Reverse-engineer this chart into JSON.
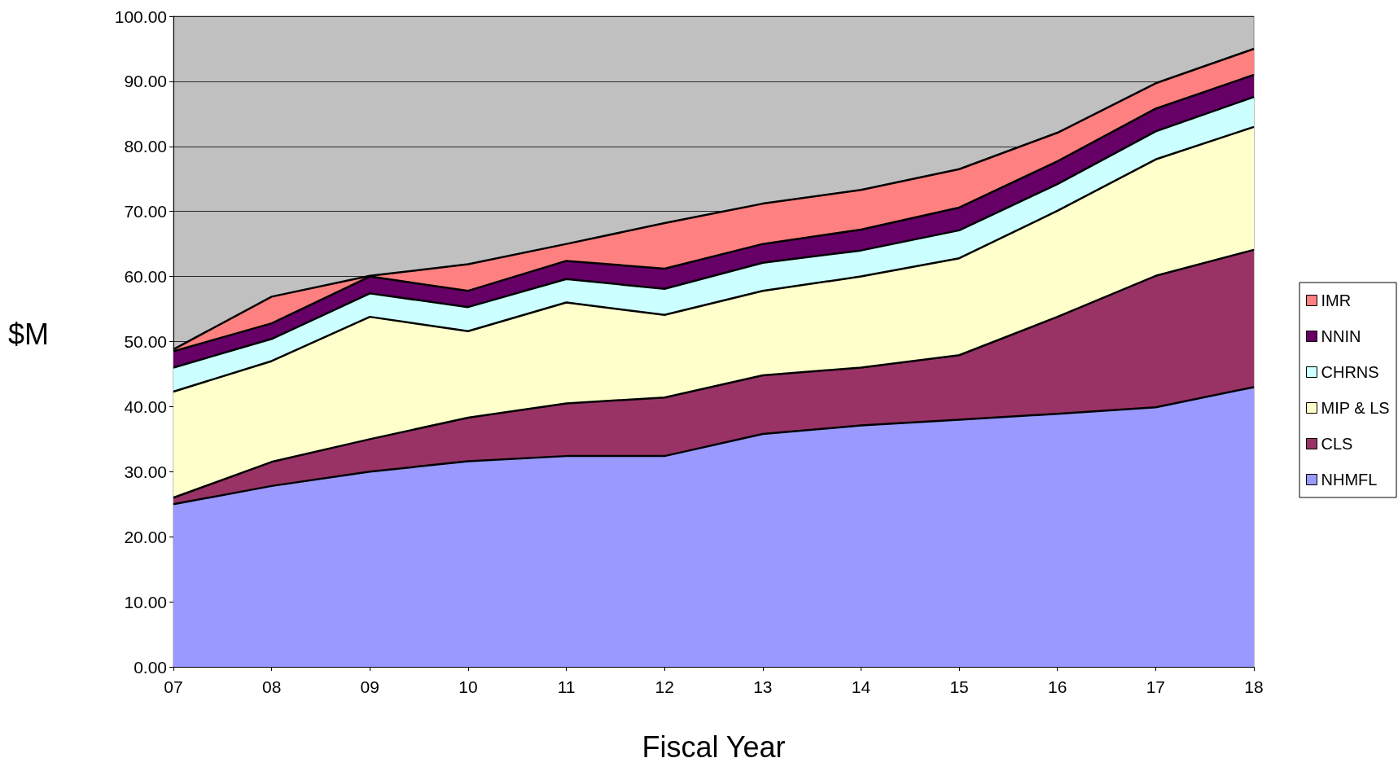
{
  "chart_data": {
    "type": "area",
    "stacked": true,
    "xlabel": "Fiscal Year",
    "ylabel": "$M",
    "categories": [
      "07",
      "08",
      "09",
      "10",
      "11",
      "12",
      "13",
      "14",
      "15",
      "16",
      "17",
      "18"
    ],
    "ylim": [
      0,
      100
    ],
    "yticks": [
      {
        "value": 0,
        "label": "0.00"
      },
      {
        "value": 10,
        "label": "10.00"
      },
      {
        "value": 20,
        "label": "20.00"
      },
      {
        "value": 30,
        "label": "30.00"
      },
      {
        "value": 40,
        "label": "40.00"
      },
      {
        "value": 50,
        "label": "50.00"
      },
      {
        "value": 60,
        "label": "60.00"
      },
      {
        "value": 70,
        "label": "70.00"
      },
      {
        "value": 80,
        "label": "80.00"
      },
      {
        "value": 90,
        "label": "90.00"
      },
      {
        "value": 100,
        "label": "100.00"
      }
    ],
    "grid": "y",
    "legend": "right",
    "series": [
      {
        "name": "NHMFL",
        "color": "#9999ff",
        "values": [
          25,
          27.8,
          30,
          31.6,
          32.4,
          32.4,
          35.8,
          37.1,
          38,
          38.9,
          39.9,
          43
        ]
      },
      {
        "name": "CLS",
        "color": "#993366",
        "values": [
          1,
          3.7,
          5,
          6.7,
          8.1,
          9,
          9,
          8.9,
          9.9,
          14.9,
          20.2,
          21.1
        ]
      },
      {
        "name": "MIP & LS",
        "color": "#ffffcc",
        "values": [
          16.3,
          15.5,
          18.8,
          13.3,
          15.5,
          12.7,
          13,
          14,
          14.9,
          16.3,
          17.9,
          18.9
        ]
      },
      {
        "name": "CHRNS",
        "color": "#ccffff",
        "values": [
          3.7,
          3.4,
          3.6,
          3.7,
          3.6,
          4,
          4.3,
          4,
          4.3,
          4.1,
          4.3,
          4.6
        ]
      },
      {
        "name": "NNIN",
        "color": "#660066",
        "values": [
          2.5,
          2.4,
          2.6,
          2.5,
          2.8,
          3.1,
          2.9,
          3.2,
          3.5,
          3.5,
          3.5,
          3.4
        ]
      },
      {
        "name": "IMR",
        "color": "#ff8080",
        "values": [
          0.3,
          4.1,
          0.1,
          4.1,
          2.6,
          7,
          6.2,
          6.1,
          5.9,
          4.4,
          3.9,
          4
        ]
      }
    ]
  }
}
